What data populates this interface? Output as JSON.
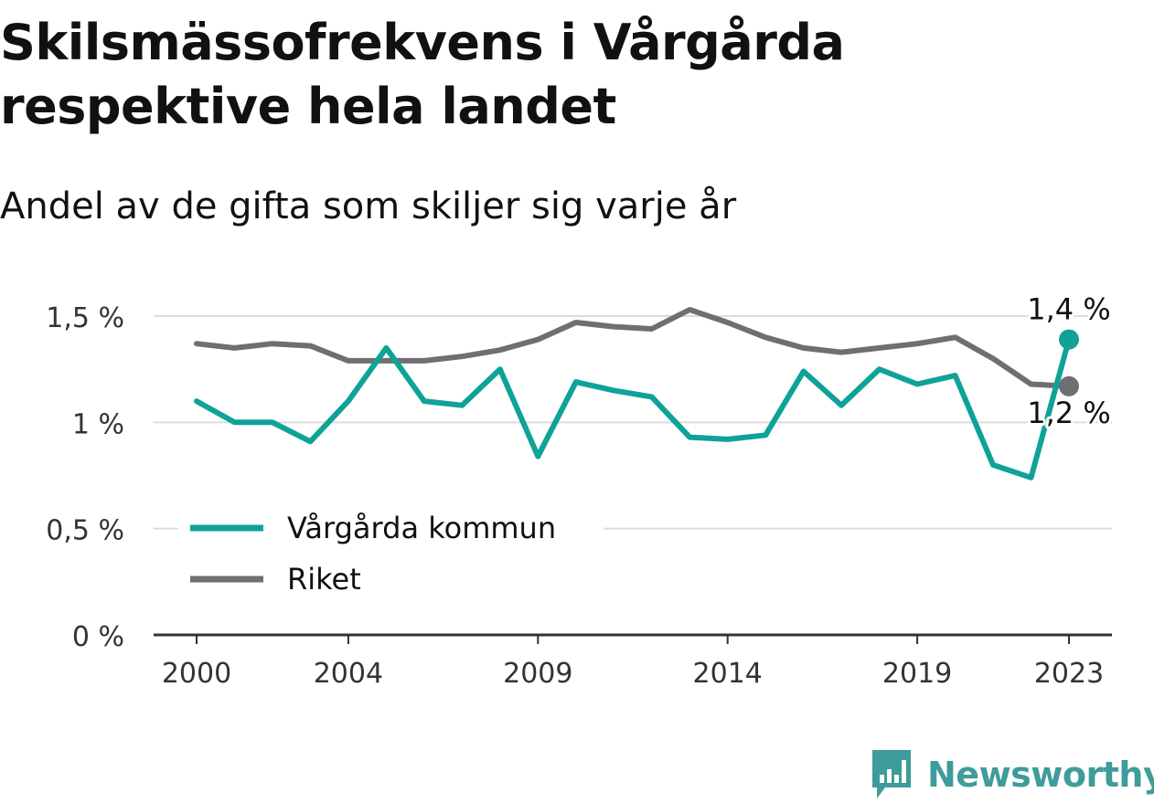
{
  "title": "Skilsmässofrekvens i Vårgårda respektive hela landet",
  "subtitle": "Andel av de gifta som skiljer sig varje år",
  "brand": "Newsworthy",
  "colors": {
    "vargarda": "#0fa298",
    "riket": "#6f6e74",
    "grid": "#dcdcdc",
    "axis": "#333333"
  },
  "chart_data": {
    "type": "line",
    "x": [
      2000,
      2001,
      2002,
      2003,
      2004,
      2005,
      2006,
      2007,
      2008,
      2009,
      2010,
      2011,
      2012,
      2013,
      2014,
      2015,
      2016,
      2017,
      2018,
      2019,
      2020,
      2021,
      2022,
      2023
    ],
    "x_ticks": [
      "2000",
      "2004",
      "2009",
      "2014",
      "2019",
      "2023"
    ],
    "y_ticks": [
      "0 %",
      "0,5 %",
      "1 %",
      "1,5 %"
    ],
    "ylim": [
      0,
      1.5
    ],
    "grid": true,
    "legend_position": "bottom-left",
    "series": [
      {
        "name": "Vårgårda kommun",
        "values": [
          1.1,
          1.0,
          1.0,
          0.91,
          1.1,
          1.35,
          1.1,
          1.08,
          1.25,
          0.84,
          1.19,
          1.15,
          1.12,
          0.93,
          0.92,
          0.94,
          1.24,
          1.08,
          1.25,
          1.18,
          1.22,
          0.8,
          0.74,
          1.39
        ],
        "end_label": "1,4 %"
      },
      {
        "name": "Riket",
        "values": [
          1.37,
          1.35,
          1.37,
          1.36,
          1.29,
          1.29,
          1.29,
          1.31,
          1.34,
          1.39,
          1.47,
          1.45,
          1.44,
          1.53,
          1.47,
          1.4,
          1.35,
          1.33,
          1.35,
          1.37,
          1.4,
          1.3,
          1.18,
          1.17
        ],
        "end_label": "1,2 %"
      }
    ]
  }
}
